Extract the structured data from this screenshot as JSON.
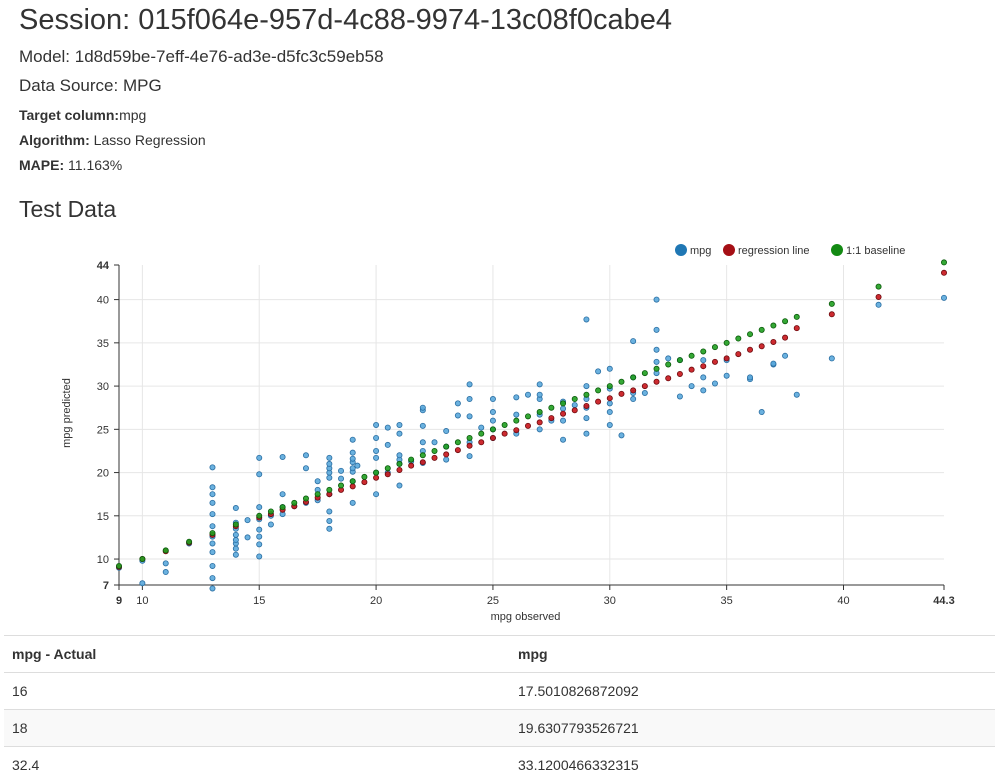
{
  "session": {
    "label": "Session: 015f064e-957d-4c88-9974-13c08f0cabe4"
  },
  "model": {
    "label": "Model: 1d8d59be-7eff-4e76-ad3e-d5fc3c59eb58"
  },
  "data_source": {
    "label": "Data Source: MPG"
  },
  "info": {
    "target_label": "Target column:",
    "target_value": "mpg",
    "algorithm_label": "Algorithm:",
    "algorithm_value": "Lasso Regression",
    "mape_label": "MAPE:",
    "mape_value": "11.163%"
  },
  "section": {
    "title": "Test Data"
  },
  "colors": {
    "mpg": "#1f77b4",
    "regression": "#a50f15",
    "baseline": "#138a13"
  },
  "chart_data": {
    "type": "scatter",
    "xlabel": "mpg observed",
    "ylabel": "mpg predicted",
    "xlim": [
      9,
      44.3
    ],
    "ylim": [
      7,
      44
    ],
    "x_ticks": [
      "9",
      "10",
      "15",
      "20",
      "25",
      "30",
      "35",
      "40",
      "44.3"
    ],
    "y_ticks": [
      "7",
      "10",
      "15",
      "20",
      "25",
      "30",
      "35",
      "40",
      "44"
    ],
    "grid": true,
    "legend_position": "top-right",
    "legend": [
      "mpg",
      "regression line",
      "1:1 baseline"
    ],
    "series": [
      {
        "name": "mpg",
        "points": [
          [
            9,
            9
          ],
          [
            10,
            7.2
          ],
          [
            10,
            9.8
          ],
          [
            11,
            8.5
          ],
          [
            11,
            9.5
          ],
          [
            12,
            11.8
          ],
          [
            13,
            6.6
          ],
          [
            13,
            7.8
          ],
          [
            13,
            9.2
          ],
          [
            13,
            10.8
          ],
          [
            13,
            11.8
          ],
          [
            13,
            12.6
          ],
          [
            13,
            13.8
          ],
          [
            13,
            15.2
          ],
          [
            13,
            16.5
          ],
          [
            13,
            17.5
          ],
          [
            13,
            18.3
          ],
          [
            13,
            20.6
          ],
          [
            14,
            10.5
          ],
          [
            14,
            11.2
          ],
          [
            14,
            11.8
          ],
          [
            14,
            12.2
          ],
          [
            14,
            12.8
          ],
          [
            14,
            13.5
          ],
          [
            14,
            14.2
          ],
          [
            14,
            15.9
          ],
          [
            14.5,
            12.5
          ],
          [
            14.5,
            14.5
          ],
          [
            15,
            10.3
          ],
          [
            15,
            11.7
          ],
          [
            15,
            12.6
          ],
          [
            15,
            13.4
          ],
          [
            15,
            14.6
          ],
          [
            15,
            16
          ],
          [
            15,
            19.8
          ],
          [
            15,
            21.7
          ],
          [
            15.5,
            14
          ],
          [
            15.5,
            15
          ],
          [
            16,
            15.2
          ],
          [
            16,
            16
          ],
          [
            16,
            17.5
          ],
          [
            16,
            21.8
          ],
          [
            16.5,
            16.1
          ],
          [
            17,
            16.5
          ],
          [
            17,
            20.5
          ],
          [
            17,
            22
          ],
          [
            17.5,
            16.8
          ],
          [
            17.5,
            18
          ],
          [
            17.5,
            19
          ],
          [
            18,
            13.5
          ],
          [
            18,
            14.4
          ],
          [
            18,
            15.5
          ],
          [
            18,
            17.5
          ],
          [
            18,
            19.4
          ],
          [
            18,
            20
          ],
          [
            18,
            20.5
          ],
          [
            18,
            21
          ],
          [
            18,
            21.7
          ],
          [
            18.5,
            19.3
          ],
          [
            18.5,
            20.2
          ],
          [
            19,
            16.5
          ],
          [
            19,
            19
          ],
          [
            19,
            20.1
          ],
          [
            19,
            20.5
          ],
          [
            19,
            21.2
          ],
          [
            19,
            21.6
          ],
          [
            19,
            22.3
          ],
          [
            19,
            23.8
          ],
          [
            19.2,
            20.8
          ],
          [
            20,
            17.5
          ],
          [
            20,
            20
          ],
          [
            20,
            21.7
          ],
          [
            20,
            22.5
          ],
          [
            20,
            24
          ],
          [
            20,
            25.5
          ],
          [
            20.5,
            20
          ],
          [
            20.5,
            23.2
          ],
          [
            20.5,
            25.2
          ],
          [
            21,
            18.5
          ],
          [
            21,
            21
          ],
          [
            21,
            21.5
          ],
          [
            21,
            22
          ],
          [
            21,
            24.5
          ],
          [
            21,
            25.5
          ],
          [
            21.5,
            21.3
          ],
          [
            22,
            21.1
          ],
          [
            22,
            22.5
          ],
          [
            22,
            23.5
          ],
          [
            22,
            25.4
          ],
          [
            22,
            27.2
          ],
          [
            22,
            27.5
          ],
          [
            22.5,
            23.5
          ],
          [
            23,
            21.5
          ],
          [
            23,
            23
          ],
          [
            23,
            24.8
          ],
          [
            23.5,
            26.6
          ],
          [
            23.5,
            28
          ],
          [
            24,
            21.9
          ],
          [
            24,
            23.5
          ],
          [
            24,
            26.5
          ],
          [
            24,
            28.5
          ],
          [
            24,
            30.2
          ],
          [
            24.5,
            25.2
          ],
          [
            25,
            24
          ],
          [
            25,
            25
          ],
          [
            25,
            26
          ],
          [
            25,
            27
          ],
          [
            25,
            28.5
          ],
          [
            26,
            24.5
          ],
          [
            26,
            26.7
          ],
          [
            26,
            28.7
          ],
          [
            26.5,
            29
          ],
          [
            27,
            25
          ],
          [
            27,
            26.7
          ],
          [
            27,
            28.5
          ],
          [
            27,
            29
          ],
          [
            27,
            30.2
          ],
          [
            27.5,
            26
          ],
          [
            28,
            23.8
          ],
          [
            28,
            26
          ],
          [
            28,
            27.4
          ],
          [
            28,
            28.2
          ],
          [
            28.5,
            27.8
          ],
          [
            29,
            24.5
          ],
          [
            29,
            26.3
          ],
          [
            29,
            27.5
          ],
          [
            29,
            28.5
          ],
          [
            29,
            30
          ],
          [
            29,
            37.7
          ],
          [
            29.5,
            31.7
          ],
          [
            30,
            25.5
          ],
          [
            30,
            27
          ],
          [
            30,
            28
          ],
          [
            30,
            29.7
          ],
          [
            30,
            32
          ],
          [
            30.5,
            24.3
          ],
          [
            31,
            28.5
          ],
          [
            31,
            29.2
          ],
          [
            31,
            31
          ],
          [
            31,
            35.2
          ],
          [
            31.5,
            29.2
          ],
          [
            32,
            31.5
          ],
          [
            32,
            32.8
          ],
          [
            32,
            34.2
          ],
          [
            32,
            36.5
          ],
          [
            32,
            40
          ],
          [
            32.5,
            33.2
          ],
          [
            33,
            28.8
          ],
          [
            33,
            33
          ],
          [
            33.5,
            30
          ],
          [
            34,
            29.5
          ],
          [
            34,
            31
          ],
          [
            34,
            33
          ],
          [
            34.5,
            30.3
          ],
          [
            35,
            31.2
          ],
          [
            35,
            33
          ],
          [
            36,
            30.8
          ],
          [
            36,
            31
          ],
          [
            36.5,
            27
          ],
          [
            37,
            32.5
          ],
          [
            37,
            32.6
          ],
          [
            37.5,
            33.5
          ],
          [
            38,
            29
          ],
          [
            39.5,
            33.2
          ],
          [
            41.5,
            39.4
          ],
          [
            44.3,
            40.2
          ]
        ]
      },
      {
        "name": "regression line",
        "points": [
          [
            9,
            9.1
          ],
          [
            10,
            10
          ],
          [
            11,
            10.9
          ],
          [
            12,
            11.9
          ],
          [
            13,
            12.8
          ],
          [
            14,
            13.8
          ],
          [
            15,
            14.8
          ],
          [
            15.5,
            15.2
          ],
          [
            16,
            15.7
          ],
          [
            16.5,
            16.1
          ],
          [
            17,
            16.6
          ],
          [
            17.5,
            17.1
          ],
          [
            18,
            17.5
          ],
          [
            18.5,
            18
          ],
          [
            19,
            18.4
          ],
          [
            19.5,
            18.9
          ],
          [
            20,
            19.4
          ],
          [
            20.5,
            19.8
          ],
          [
            21,
            20.3
          ],
          [
            21.5,
            20.8
          ],
          [
            22,
            21.2
          ],
          [
            22.5,
            21.7
          ],
          [
            23,
            22.1
          ],
          [
            23.5,
            22.6
          ],
          [
            24,
            23.1
          ],
          [
            24.5,
            23.5
          ],
          [
            25,
            24
          ],
          [
            25.5,
            24.5
          ],
          [
            26,
            24.9
          ],
          [
            26.5,
            25.4
          ],
          [
            27,
            25.8
          ],
          [
            27.5,
            26.3
          ],
          [
            28,
            26.8
          ],
          [
            28.5,
            27.2
          ],
          [
            29,
            27.7
          ],
          [
            29.5,
            28.2
          ],
          [
            30,
            28.6
          ],
          [
            30.5,
            29.1
          ],
          [
            31,
            29.5
          ],
          [
            31.5,
            30
          ],
          [
            32,
            30.5
          ],
          [
            32.5,
            30.9
          ],
          [
            33,
            31.4
          ],
          [
            33.5,
            31.9
          ],
          [
            34,
            32.3
          ],
          [
            34.5,
            32.8
          ],
          [
            35,
            33.2
          ],
          [
            35.5,
            33.7
          ],
          [
            36,
            34.2
          ],
          [
            36.5,
            34.6
          ],
          [
            37,
            35.1
          ],
          [
            37.5,
            35.6
          ],
          [
            38,
            36.7
          ],
          [
            39.5,
            38.3
          ],
          [
            41.5,
            40.3
          ],
          [
            44.3,
            43.1
          ]
        ]
      },
      {
        "name": "1:1 baseline",
        "points": [
          [
            9,
            9.2
          ],
          [
            10,
            10
          ],
          [
            11,
            11
          ],
          [
            12,
            12
          ],
          [
            13,
            13
          ],
          [
            14,
            14
          ],
          [
            15,
            15
          ],
          [
            15.5,
            15.5
          ],
          [
            16,
            16
          ],
          [
            16.5,
            16.5
          ],
          [
            17,
            17
          ],
          [
            17.5,
            17.5
          ],
          [
            18,
            18
          ],
          [
            18.5,
            18.5
          ],
          [
            19,
            19
          ],
          [
            19.5,
            19.5
          ],
          [
            20,
            20
          ],
          [
            20.5,
            20.5
          ],
          [
            21,
            21
          ],
          [
            21.5,
            21.5
          ],
          [
            22,
            22
          ],
          [
            22.5,
            22.5
          ],
          [
            23,
            23
          ],
          [
            23.5,
            23.5
          ],
          [
            24,
            24
          ],
          [
            24.5,
            24.5
          ],
          [
            25,
            25
          ],
          [
            25.5,
            25.5
          ],
          [
            26,
            26
          ],
          [
            26.5,
            26.5
          ],
          [
            27,
            27
          ],
          [
            27.5,
            27.5
          ],
          [
            28,
            28
          ],
          [
            28.5,
            28.5
          ],
          [
            29,
            29
          ],
          [
            29.5,
            29.5
          ],
          [
            30,
            30
          ],
          [
            30.5,
            30.5
          ],
          [
            31,
            31
          ],
          [
            31.5,
            31.5
          ],
          [
            32,
            32
          ],
          [
            32.5,
            32.5
          ],
          [
            33,
            33
          ],
          [
            33.5,
            33.5
          ],
          [
            34,
            34
          ],
          [
            34.5,
            34.5
          ],
          [
            35,
            35
          ],
          [
            35.5,
            35.5
          ],
          [
            36,
            36
          ],
          [
            36.5,
            36.5
          ],
          [
            37,
            37
          ],
          [
            37.5,
            37.5
          ],
          [
            38,
            38
          ],
          [
            39.5,
            39.5
          ],
          [
            41.5,
            41.5
          ],
          [
            44.3,
            44.3
          ]
        ]
      }
    ]
  },
  "table": {
    "headers": [
      "mpg - Actual",
      "mpg"
    ],
    "rows": [
      [
        "16",
        "17.5010826872092"
      ],
      [
        "18",
        "19.6307793526721"
      ],
      [
        "32.4",
        "33.1200466332315"
      ]
    ]
  }
}
